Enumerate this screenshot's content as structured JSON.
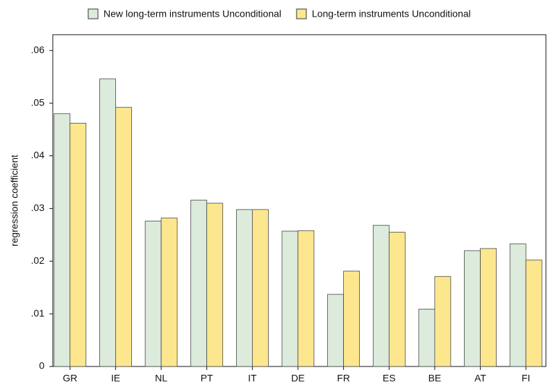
{
  "chart_data": {
    "type": "bar",
    "y_label": "regression coefficient",
    "categories": [
      "GR",
      "IE",
      "NL",
      "PT",
      "IT",
      "DE",
      "FR",
      "ES",
      "BE",
      "AT",
      "FI"
    ],
    "series": [
      {
        "name": "New long-term instruments Unconditional",
        "color": "#dcebdc",
        "values": [
          0.048,
          0.0546,
          0.0276,
          0.0316,
          0.0298,
          0.0257,
          0.0137,
          0.0268,
          0.0109,
          0.022,
          0.0233
        ]
      },
      {
        "name": "Long-term instruments Unconditional",
        "color": "#fde78e",
        "values": [
          0.0462,
          0.0492,
          0.0282,
          0.031,
          0.0298,
          0.0258,
          0.0181,
          0.0255,
          0.0171,
          0.0224,
          0.0202
        ]
      }
    ],
    "ylim": [
      0,
      0.063
    ],
    "yticks": [
      0,
      {
        "value": 0.01,
        "label": ".01"
      },
      {
        "value": 0.02,
        "label": ".02"
      },
      {
        "value": 0.03,
        "label": ".03"
      },
      {
        "value": 0.04,
        "label": ".04"
      },
      {
        "value": 0.05,
        "label": ".05"
      },
      {
        "value": 0.06,
        "label": ".06"
      }
    ],
    "legend": "top"
  }
}
